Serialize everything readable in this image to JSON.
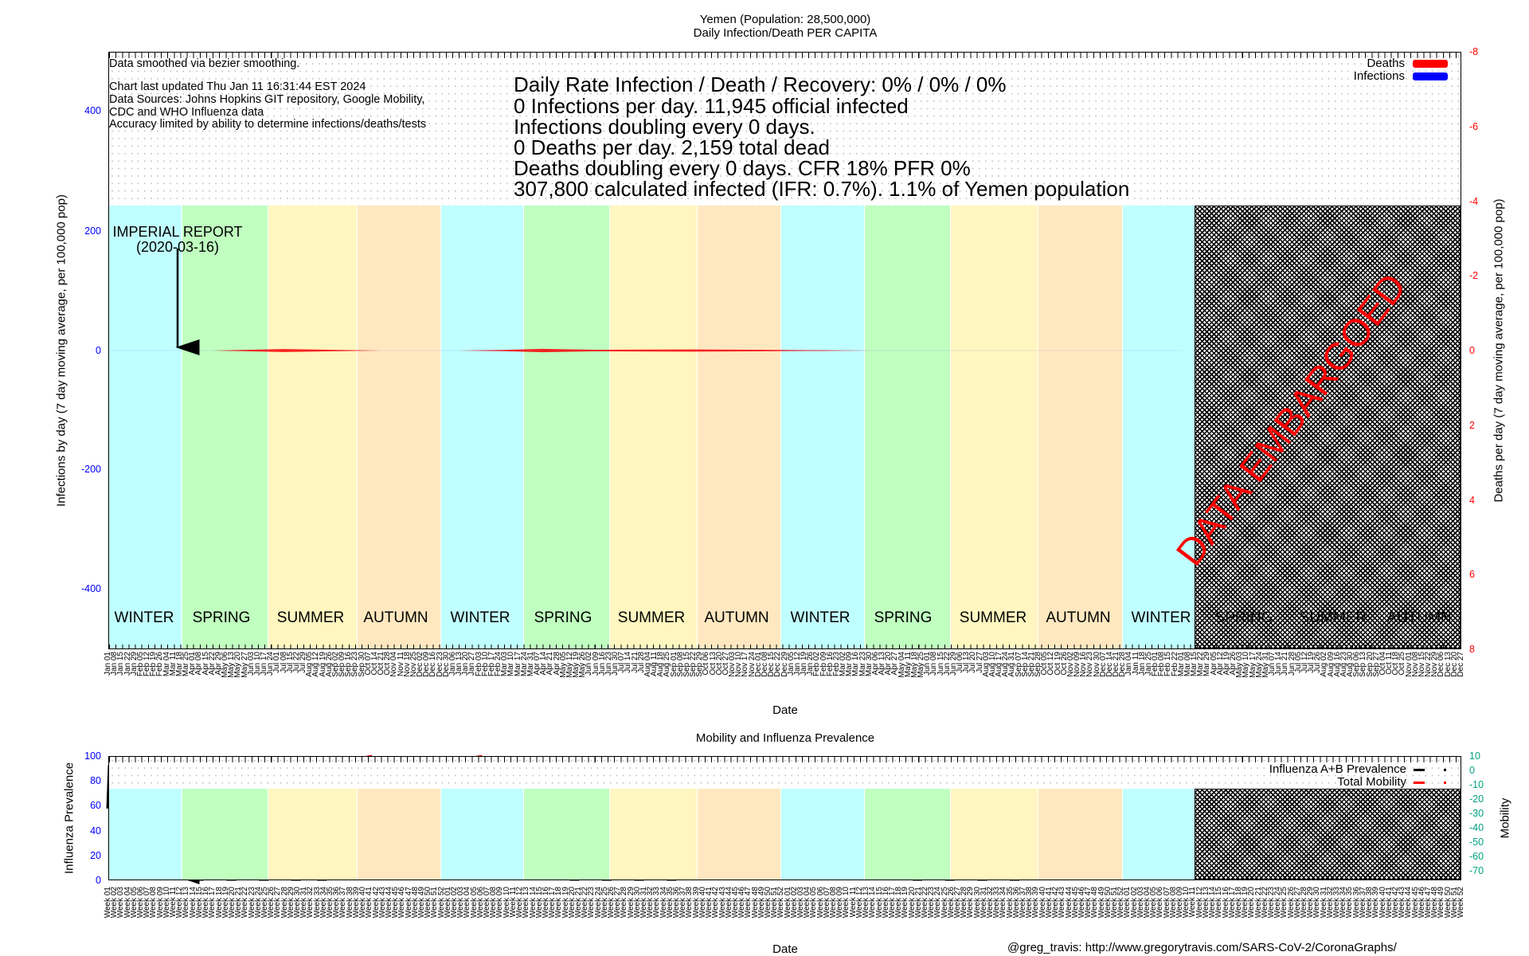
{
  "header": {
    "title_line1": "Yemen (Population: 28,500,000)",
    "title_line2": "Daily Infection/Death PER CAPITA"
  },
  "main_chart": {
    "notes": [
      "Data smoothed via bezier smoothing.",
      "Chart last updated Thu Jan 11 16:31:44 EST 2024",
      "Data Sources: Johns Hopkins GIT repository, Google Mobility,",
      "CDC and WHO Influenza data",
      "Accuracy limited by ability to determine infections/deaths/tests"
    ],
    "stats": [
      "Daily Rate Infection / Death / Recovery: 0% / 0% / 0%",
      "0 Infections per day.  11,945 official infected",
      "Infections doubling every 0 days.",
      "0 Deaths per day.  2,159 total dead",
      "Deaths doubling every 0 days.  CFR 18%  PFR 0%",
      "307,800 calculated infected (IFR: 0.7%).  1.1% of Yemen population"
    ],
    "legend": [
      {
        "label": "Deaths",
        "color": "#ff0000"
      },
      {
        "label": "Infections",
        "color": "#0000ff"
      }
    ],
    "annotation": {
      "line1": "IMPERIAL REPORT",
      "line2": "(2020-03-16)"
    },
    "embargo_text": "DATA EMBARGOED",
    "seasons": [
      "WINTER",
      "SPRING",
      "SUMMER",
      "AUTUMN",
      "WINTER",
      "SPRING",
      "SUMMER",
      "AUTUMN",
      "WINTER",
      "SPRING",
      "SUMMER",
      "AUTUMN",
      "WINTER",
      "SPRING",
      "SUMMER",
      "AUTUMN"
    ],
    "season_colors": {
      "WINTER": "#c0ffff",
      "SPRING": "#c0ffc0",
      "SUMMER": "#fff6c0",
      "AUTUMN": "#ffe8c0"
    },
    "left_ticks": [
      "400",
      "200",
      "0",
      "-200",
      "-400"
    ],
    "right_ticks": [
      "-8",
      "-6",
      "-4",
      "-2",
      "0",
      "2",
      "4",
      "6",
      "8"
    ],
    "ylabel_left": "Infections by day (7 day moving average, per 100,000 pop)",
    "ylabel_right": "Deaths per day (7 day moving average, per 100,000 pop)",
    "xlabel": "Date"
  },
  "lower_chart": {
    "title": "Mobility and Influenza Prevalence",
    "legend": [
      {
        "label": "Influenza A+B Prevalence",
        "color": "#000000"
      },
      {
        "label": "Total Mobility",
        "color": "#ff0000"
      }
    ],
    "left_ticks": [
      "100",
      "80",
      "60",
      "40",
      "20",
      "0"
    ],
    "right_ticks": [
      "10",
      "0",
      "-10",
      "-20",
      "-30",
      "-40",
      "-50",
      "-60",
      "-70"
    ],
    "ylabel_left": "Influenza Prevalence",
    "ylabel_right": "Mobility",
    "xlabel": "Date"
  },
  "footer": "@greg_travis: http://www.gregorytravis.com/SARS-CoV-2/CoronaGraphs/",
  "chart_data": [
    {
      "type": "line",
      "title": "Yemen (Population: 28,500,000) Daily Infection/Death PER CAPITA",
      "xlabel": "Date",
      "ylabel": "Infections by day (7 day moving average, per 100,000 pop)",
      "y2label": "Deaths per day (7 day moving average, per 100,000 pop)",
      "ylim": [
        -500,
        500
      ],
      "y2lim": [
        8,
        -8
      ],
      "x_unit": "weeks since 2020-01-01",
      "grid": true,
      "legend_position": "top-right",
      "x_tick_labels": [
        "Jan 01",
        "Jan 08",
        "Jan 15",
        "Jan 22",
        "Jan 29",
        "Feb 05",
        "Feb 12",
        "Feb 19",
        "Feb 26",
        "Mar 04",
        "Mar 11",
        "Mar 18",
        "Mar 25",
        "Apr 01",
        "Apr 08",
        "Apr 15",
        "Apr 22",
        "Apr 29",
        "May 06",
        "May 13",
        "May 20",
        "May 27",
        "Jun 03",
        "Jun 10",
        "Jun 17",
        "Jun 24",
        "Jul 01",
        "Jul 08",
        "Jul 15",
        "Jul 22",
        "Jul 29",
        "Aug 05",
        "Aug 12",
        "Aug 19",
        "Aug 26",
        "Sep 02",
        "Sep 09",
        "Sep 16",
        "Sep 23",
        "Sep 30",
        "Oct 07",
        "Oct 14",
        "Oct 21",
        "Oct 28",
        "Nov 04",
        "Nov 11",
        "Nov 18",
        "Nov 25",
        "Dec 02",
        "Dec 09",
        "Dec 16",
        "Dec 23",
        "Dec 30",
        "Jan 06",
        "Jan 13",
        "Jan 20",
        "Jan 27",
        "Feb 03",
        "Feb 10",
        "Feb 17",
        "Feb 24",
        "Mar 03",
        "Mar 10",
        "Mar 17",
        "Mar 24",
        "Mar 31",
        "Apr 07",
        "Apr 14",
        "Apr 21",
        "Apr 28",
        "May 05",
        "May 12",
        "May 19",
        "May 26",
        "Jun 02",
        "Jun 09",
        "Jun 16",
        "Jun 23",
        "Jun 30",
        "Jul 07",
        "Jul 14",
        "Jul 21",
        "Jul 28",
        "Aug 04",
        "Aug 11",
        "Aug 18",
        "Aug 25",
        "Sep 01",
        "Sep 08",
        "Sep 15",
        "Sep 22",
        "Sep 29",
        "Oct 06",
        "Oct 13",
        "Oct 20",
        "Oct 27",
        "Nov 03",
        "Nov 10",
        "Nov 17",
        "Nov 24",
        "Dec 01",
        "Dec 08",
        "Dec 15",
        "Dec 22",
        "Dec 29",
        "Jan 05",
        "Jan 12",
        "Jan 19",
        "Jan 26",
        "Feb 02",
        "Feb 09",
        "Feb 16",
        "Feb 23",
        "Mar 02",
        "Mar 09",
        "Mar 16",
        "Mar 23",
        "Mar 30",
        "Apr 06",
        "Apr 13",
        "Apr 20",
        "Apr 27",
        "May 04",
        "May 11",
        "May 18",
        "May 25",
        "Jun 01",
        "Jun 08",
        "Jun 15",
        "Jun 22",
        "Jun 29",
        "Jul 06",
        "Jul 13",
        "Jul 20",
        "Jul 27",
        "Aug 03",
        "Aug 10",
        "Aug 17",
        "Aug 24",
        "Aug 31",
        "Sep 07",
        "Sep 14",
        "Sep 21",
        "Sep 28",
        "Oct 05",
        "Oct 12",
        "Oct 19",
        "Oct 26",
        "Nov 02",
        "Nov 09",
        "Nov 16",
        "Nov 23",
        "Nov 30",
        "Dec 07",
        "Dec 14",
        "Dec 21",
        "Dec 28",
        "Jan 04",
        "Jan 11",
        "Jan 18",
        "Jan 25",
        "Feb 01",
        "Feb 08",
        "Feb 15",
        "Feb 22",
        "Mar 01",
        "Mar 08",
        "Mar 15",
        "Mar 22",
        "Mar 29",
        "Apr 05",
        "Apr 12",
        "Apr 19",
        "Apr 26",
        "May 03",
        "May 10",
        "May 17",
        "May 24",
        "May 31",
        "Jun 07",
        "Jun 14",
        "Jun 21",
        "Jun 28",
        "Jul 05",
        "Jul 12",
        "Jul 19",
        "Jul 26",
        "Aug 02",
        "Aug 09",
        "Aug 16",
        "Aug 23",
        "Aug 30",
        "Sep 06",
        "Sep 13",
        "Sep 20",
        "Sep 27",
        "Oct 04",
        "Oct 11",
        "Oct 18",
        "Oct 25",
        "Nov 01",
        "Nov 08",
        "Nov 15",
        "Nov 22",
        "Nov 29",
        "Dec 06",
        "Dec 13",
        "Dec 20",
        "Dec 27"
      ],
      "series": [
        {
          "name": "Infections",
          "axis": "y",
          "color": "#0000ff",
          "x": [
            0,
            166
          ],
          "y": [
            0,
            0
          ]
        },
        {
          "name": "Deaths",
          "axis": "y2",
          "color": "#ff0000",
          "x": [
            16,
            22,
            27,
            34,
            42,
            54,
            62,
            67,
            75,
            80,
            90,
            100,
            110,
            118
          ],
          "y": [
            0,
            0.02,
            0.04,
            0.02,
            0,
            0,
            0.02,
            0.045,
            0.02,
            0.025,
            0.03,
            0.02,
            0.01,
            0
          ]
        }
      ],
      "annotations": [
        {
          "text": "IMPERIAL REPORT (2020-03-16)",
          "x": 11
        }
      ],
      "embargo_from_week": 167
    },
    {
      "type": "line",
      "title": "Mobility and Influenza Prevalence",
      "xlabel": "Date",
      "ylabel": "Influenza Prevalence",
      "y2label": "Mobility",
      "ylim": [
        0,
        100
      ],
      "y2lim": [
        -75,
        11
      ],
      "legend_position": "top-right",
      "x_tick_labels_pattern": "Week 01 … Week 52, repeated per year",
      "series": [
        {
          "name": "Influenza A+B Prevalence",
          "axis": "y",
          "color": "#000000",
          "x": [
            0,
            1,
            1.6,
            2.5,
            5,
            9,
            14,
            19,
            24,
            29,
            33,
            38,
            43,
            48,
            53,
            58,
            63,
            67,
            72,
            77,
            82,
            87,
            92,
            96,
            101,
            106,
            111,
            116,
            120,
            125,
            130,
            135,
            140,
            145,
            150,
            155,
            159,
            164
          ],
          "y": [
            75,
            40,
            15,
            3,
            2,
            1,
            0,
            0,
            0,
            0,
            0,
            1,
            2,
            5,
            7,
            5,
            2,
            1,
            0,
            0,
            0,
            0,
            1,
            3,
            5,
            6,
            4,
            2,
            1,
            0,
            0,
            0,
            0,
            1,
            3,
            6,
            6,
            3
          ]
        },
        {
          "name": "Total Mobility",
          "axis": "y2",
          "color": "#ff0000",
          "x": [
            7,
            12,
            16.5,
            21,
            26,
            30.5,
            35,
            40,
            57
          ],
          "y": [
            3.8,
            -1.3,
            -3.2,
            -4.2,
            3,
            3,
            2.5,
            9.4,
            9.4
          ]
        }
      ]
    }
  ]
}
